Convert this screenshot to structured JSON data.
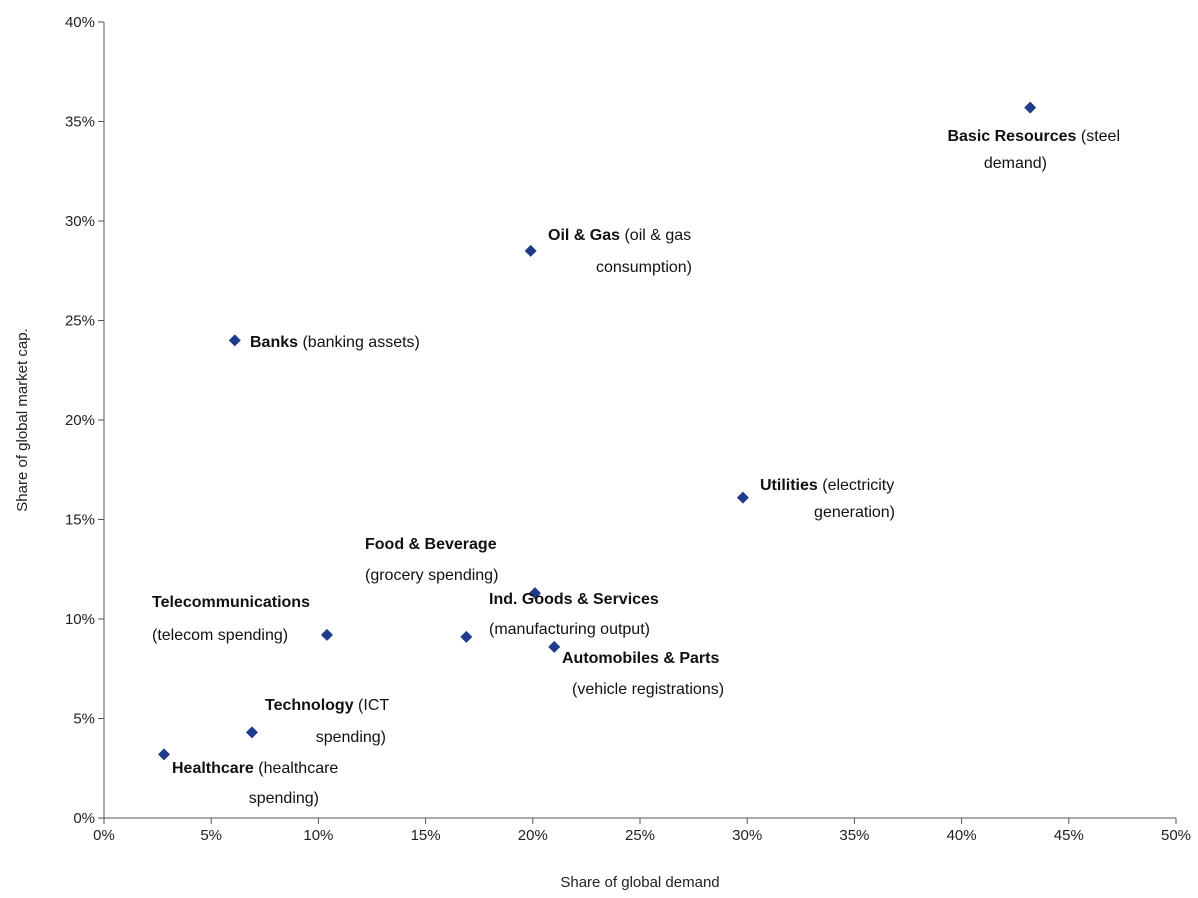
{
  "chart_data": {
    "type": "scatter",
    "xlabel": "Share of global demand",
    "ylabel": "Share of global market cap.",
    "xlim": [
      0,
      50
    ],
    "ylim": [
      0,
      40
    ],
    "x_ticks": [
      0,
      5,
      10,
      15,
      20,
      25,
      30,
      35,
      40,
      45,
      50
    ],
    "y_ticks": [
      0,
      5,
      10,
      15,
      20,
      25,
      30,
      35,
      40
    ],
    "x_tick_labels": [
      "0%",
      "5%",
      "10%",
      "15%",
      "20%",
      "25%",
      "30%",
      "35%",
      "40%",
      "45%",
      "50%"
    ],
    "y_tick_labels": [
      "0%",
      "5%",
      "10%",
      "15%",
      "20%",
      "25%",
      "30%",
      "35%",
      "40%"
    ],
    "grid": false,
    "marker_color": "#1f3b8c",
    "points": [
      {
        "sector": "Basic Resources",
        "note": "(steel demand)",
        "x": 43.2,
        "y": 35.7
      },
      {
        "sector": "Oil & Gas",
        "note": "(oil & gas consumption)",
        "x": 19.9,
        "y": 28.5
      },
      {
        "sector": "Banks",
        "note": "(banking assets)",
        "x": 6.1,
        "y": 24.0
      },
      {
        "sector": "Utilities",
        "note": "(electricity generation)",
        "x": 29.8,
        "y": 16.1
      },
      {
        "sector": "Food & Beverage",
        "note": "(grocery spending)",
        "x": 20.1,
        "y": 11.3
      },
      {
        "sector": "Ind. Goods & Services",
        "note": "(manufacturing output)",
        "x": 16.9,
        "y": 9.1
      },
      {
        "sector": "Telecommunications",
        "note": "(telecom spending)",
        "x": 10.4,
        "y": 9.2
      },
      {
        "sector": "Automobiles & Parts",
        "note": "(vehicle registrations)",
        "x": 21.0,
        "y": 8.6
      },
      {
        "sector": "Technology",
        "note": "(ICT spending)",
        "x": 6.9,
        "y": 4.3
      },
      {
        "sector": "Healthcare",
        "note": "(healthcare spending)",
        "x": 2.8,
        "y": 3.2
      }
    ]
  }
}
